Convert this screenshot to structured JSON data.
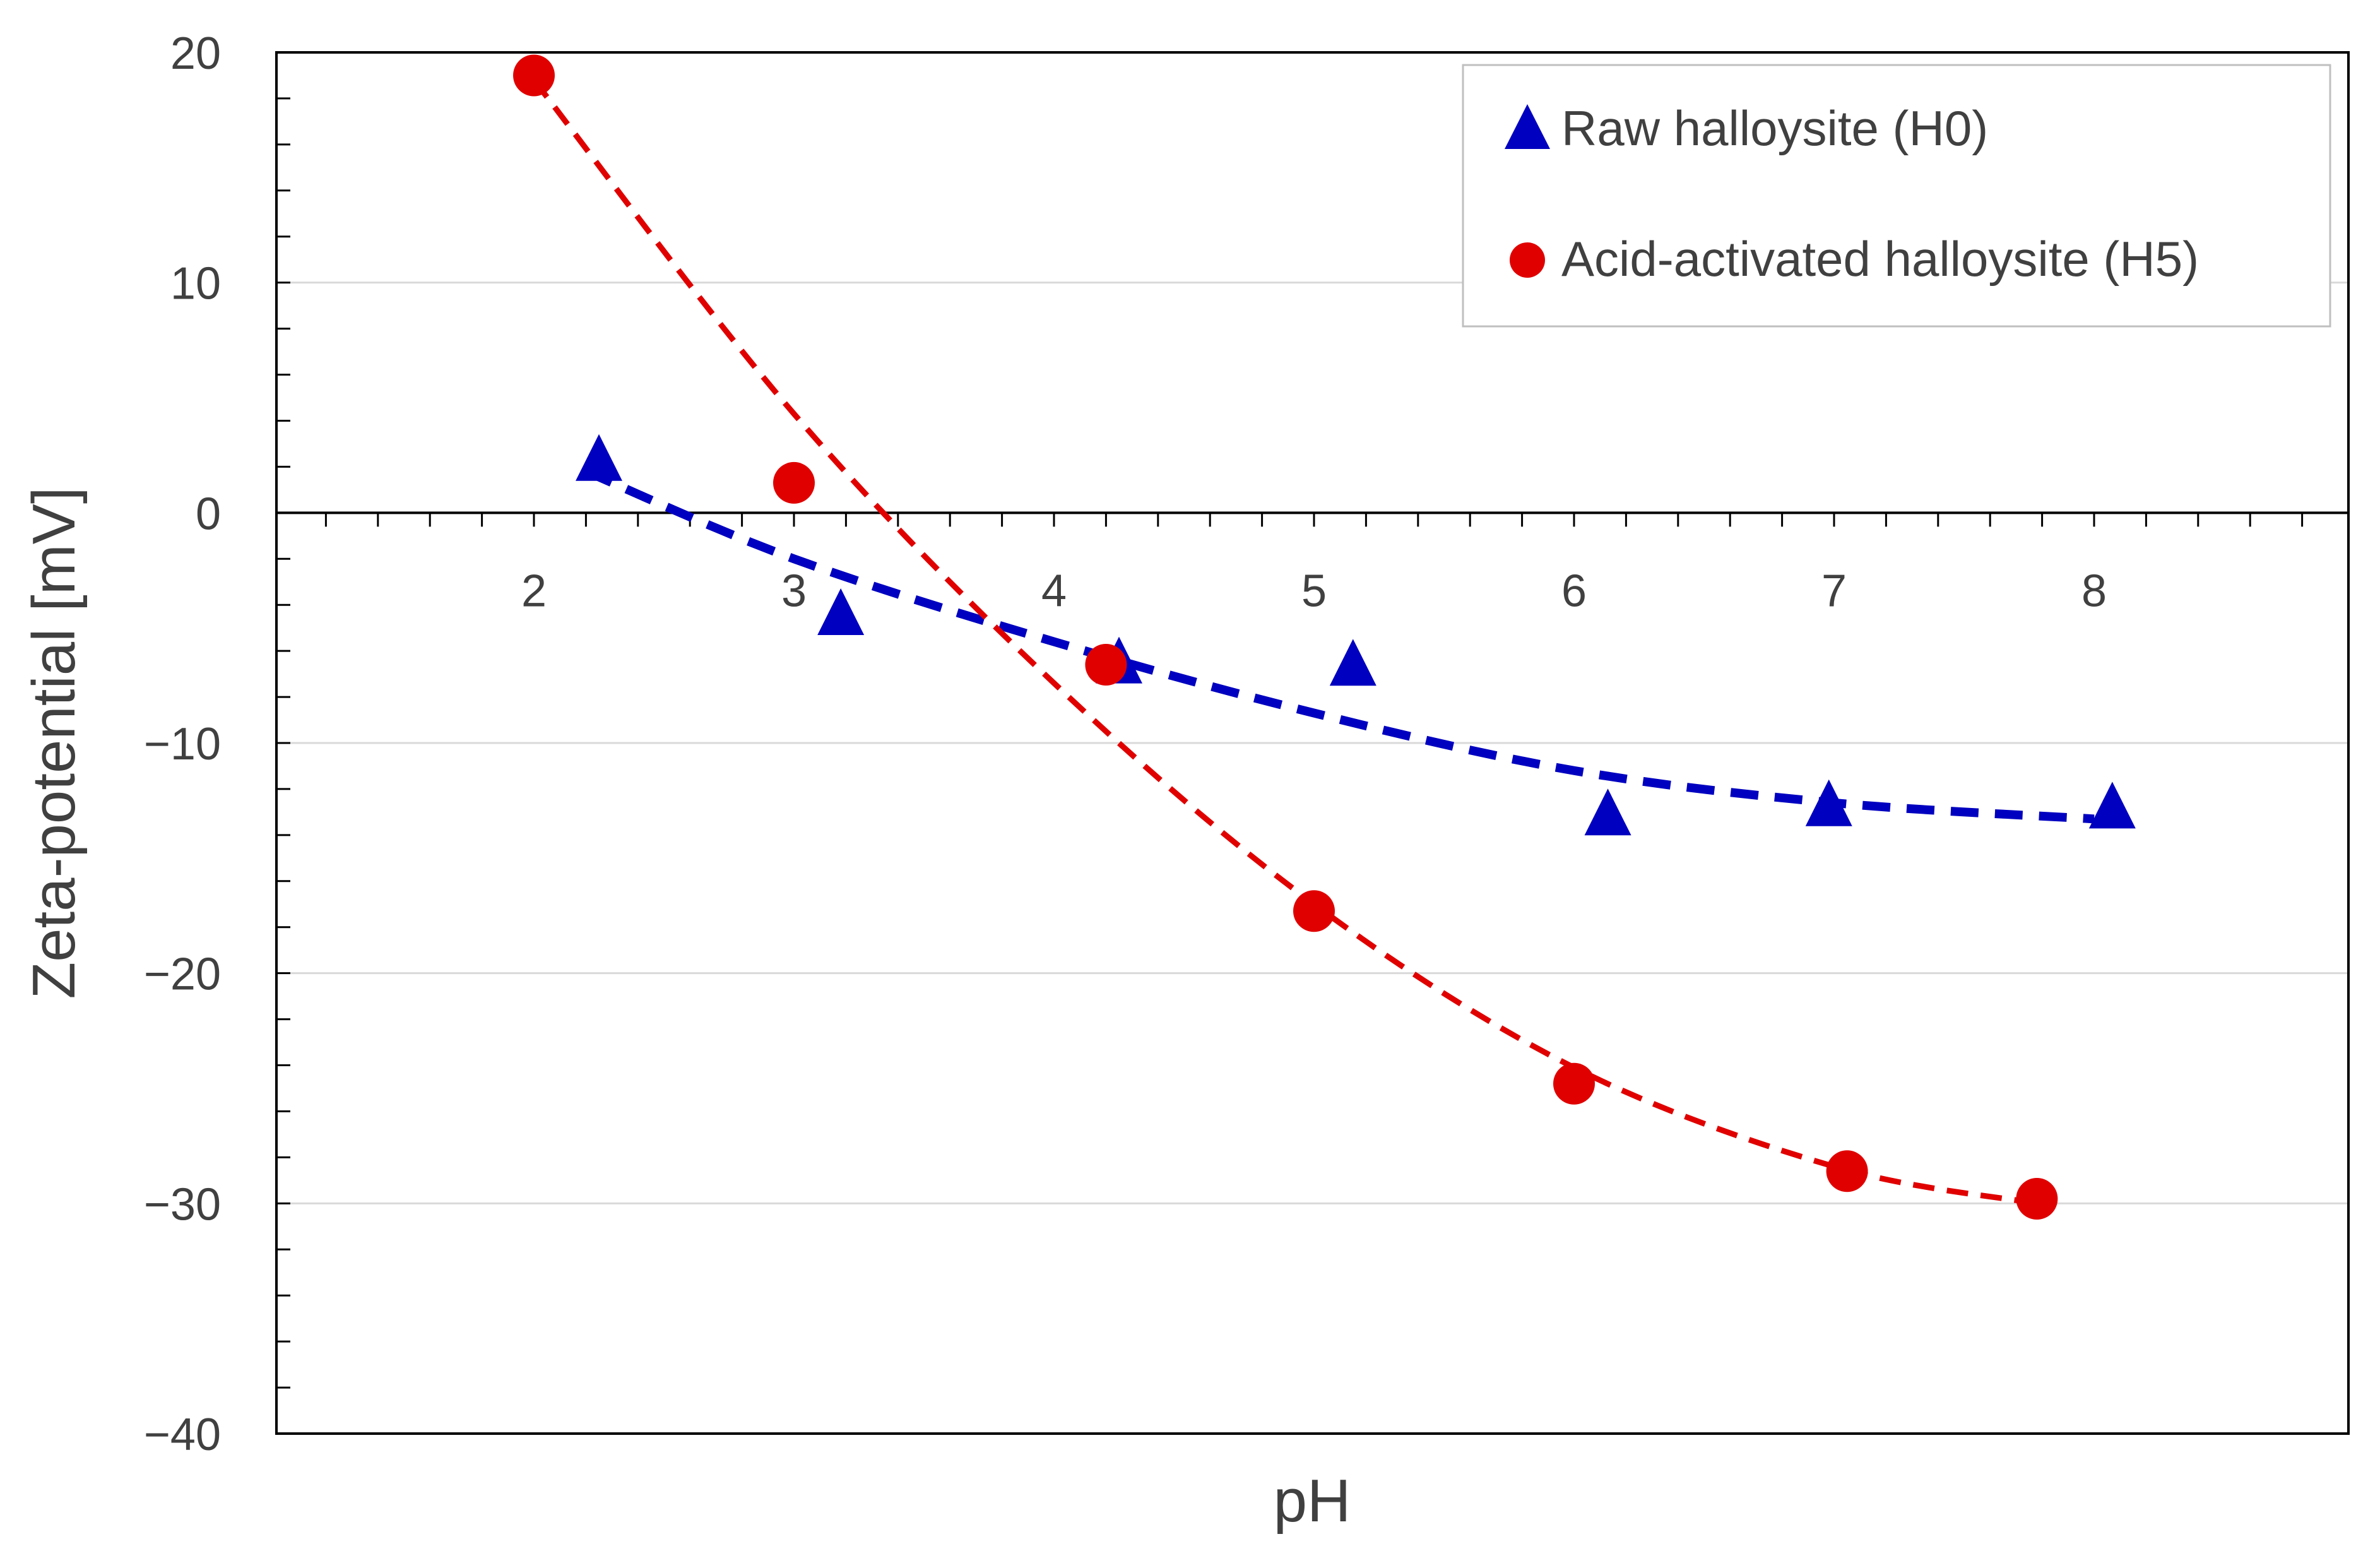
{
  "chart_data": {
    "type": "scatter",
    "title": "",
    "xlabel": "pH",
    "ylabel": "Zeta-potential [mV]",
    "xlim": [
      1.0,
      9.0
    ],
    "ylim": [
      -40,
      20
    ],
    "x_ticks": [
      "2",
      "3",
      "4",
      "5",
      "6",
      "7",
      "8"
    ],
    "x_tick_values": [
      2,
      3,
      4,
      5,
      6,
      7,
      8
    ],
    "y_ticks": [
      "20",
      "10",
      "0",
      "−10",
      "−20",
      "−30",
      "−40"
    ],
    "y_tick_values": [
      20,
      10,
      0,
      -10,
      -20,
      -30,
      -40
    ],
    "grid": "horizontal",
    "legend_position": "top-right",
    "series": [
      {
        "name": "Raw halloysite (H0)",
        "marker": "triangle",
        "color": "#0000c0",
        "points": [
          [
            2.25,
            2.2
          ],
          [
            3.18,
            -4.5
          ],
          [
            4.25,
            -6.6
          ],
          [
            5.15,
            -6.7
          ],
          [
            6.13,
            -13.2
          ],
          [
            6.98,
            -12.8
          ],
          [
            8.07,
            -12.9
          ]
        ],
        "trend": [
          [
            2.2,
            1.8
          ],
          [
            3.0,
            -2.0
          ],
          [
            4.0,
            -5.6
          ],
          [
            5.0,
            -8.7
          ],
          [
            6.0,
            -11.2
          ],
          [
            7.0,
            -12.6
          ],
          [
            8.0,
            -13.3
          ]
        ]
      },
      {
        "name": "Acid-activated halloysite (H5)",
        "marker": "circle",
        "color": "#e00000",
        "points": [
          [
            2.0,
            19.0
          ],
          [
            3.0,
            1.3
          ],
          [
            4.2,
            -6.6
          ],
          [
            5.0,
            -17.3
          ],
          [
            6.0,
            -24.8
          ],
          [
            7.05,
            -28.6
          ],
          [
            7.78,
            -29.8
          ]
        ],
        "trend": [
          [
            2.0,
            18.8
          ],
          [
            3.0,
            4.3
          ],
          [
            4.0,
            -7.4
          ],
          [
            5.0,
            -17.0
          ],
          [
            6.0,
            -24.1
          ],
          [
            7.0,
            -28.4
          ],
          [
            7.78,
            -30.0
          ]
        ]
      }
    ]
  }
}
